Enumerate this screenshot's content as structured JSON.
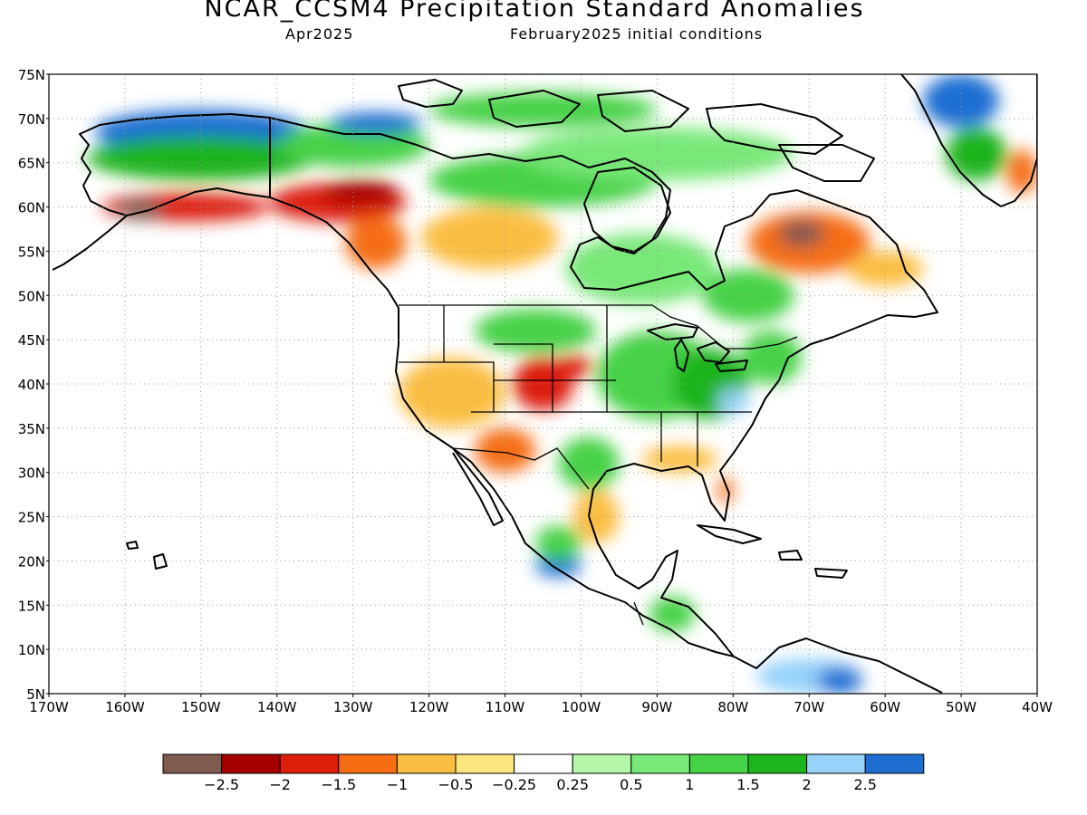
{
  "title": "NCAR_CCSM4 Precipitation Standard Anomalies",
  "subtitle_left": "Apr2025",
  "subtitle_right": "February2025 initial conditions",
  "map": {
    "lat_labels": [
      "75N",
      "70N",
      "65N",
      "60N",
      "55N",
      "50N",
      "45N",
      "40N",
      "35N",
      "30N",
      "25N",
      "20N",
      "15N",
      "10N",
      "5N"
    ],
    "lon_labels": [
      "170W",
      "160W",
      "150W",
      "140W",
      "130W",
      "120W",
      "110W",
      "100W",
      "90W",
      "80W",
      "70W",
      "60W",
      "50W",
      "40W"
    ],
    "lat_range": [
      5,
      75
    ],
    "lon_range": [
      -170,
      -40
    ],
    "gridlines": "dotted",
    "regions": [
      {
        "name": "alaska-north-slope",
        "lon": -150,
        "lat": 68.5,
        "rx": 14,
        "ry": 2.5,
        "anomaly": 2.5
      },
      {
        "name": "alaska-interior",
        "lon": -150,
        "lat": 65.5,
        "rx": 15,
        "ry": 2.5,
        "anomaly": 1.5
      },
      {
        "name": "yukon-north",
        "lon": -130,
        "lat": 67,
        "rx": 10,
        "ry": 2.5,
        "anomaly": 1.2
      },
      {
        "name": "beaufort-coast",
        "lon": -127,
        "lat": 69.5,
        "rx": 6,
        "ry": 1.2,
        "anomaly": 2.5
      },
      {
        "name": "alaska-south",
        "lon": -152,
        "lat": 60,
        "rx": 11,
        "ry": 1.6,
        "anomaly": -1.8
      },
      {
        "name": "alaska-southwest",
        "lon": -158,
        "lat": 59.7,
        "rx": 3,
        "ry": 1.2,
        "anomaly": -2.7
      },
      {
        "name": "gulf-alaska-coast",
        "lon": -132,
        "lat": 60.5,
        "rx": 9,
        "ry": 2.2,
        "anomaly": -1.6
      },
      {
        "name": "yukon-south",
        "lon": -129,
        "lat": 61.7,
        "rx": 5,
        "ry": 1.3,
        "anomaly": -2.2
      },
      {
        "name": "bc-interior",
        "lon": -127,
        "lat": 56,
        "rx": 4,
        "ry": 3,
        "anomaly": -1.2
      },
      {
        "name": "prairies-north",
        "lon": -112,
        "lat": 56.5,
        "rx": 9,
        "ry": 3.5,
        "anomaly": -0.8
      },
      {
        "name": "northwest-territories",
        "lon": -105,
        "lat": 63,
        "rx": 15,
        "ry": 3,
        "anomaly": 1.0
      },
      {
        "name": "nunavut",
        "lon": -90,
        "lat": 66,
        "rx": 18,
        "ry": 3,
        "anomaly": 0.7
      },
      {
        "name": "canadian-archipelago",
        "lon": -105,
        "lat": 71,
        "rx": 15,
        "ry": 2,
        "anomaly": 1.0
      },
      {
        "name": "manitoba-ontario",
        "lon": -92,
        "lat": 53,
        "rx": 10,
        "ry": 4,
        "anomaly": 0.9
      },
      {
        "name": "quebec-south",
        "lon": -78,
        "lat": 50,
        "rx": 6,
        "ry": 3,
        "anomaly": 1.0
      },
      {
        "name": "labrador",
        "lon": -70,
        "lat": 56,
        "rx": 8,
        "ry": 3.5,
        "anomaly": -1.5
      },
      {
        "name": "ungava",
        "lon": -71,
        "lat": 57,
        "rx": 3,
        "ry": 1.5,
        "anomaly": -2.7
      },
      {
        "name": "newfoundland",
        "lon": -60,
        "lat": 53,
        "rx": 5,
        "ry": 2,
        "anomaly": -0.6
      },
      {
        "name": "greenland-west",
        "lon": -50,
        "lat": 72,
        "rx": 5,
        "ry": 3,
        "anomaly": 2.6
      },
      {
        "name": "greenland-southwest",
        "lon": -48,
        "lat": 66,
        "rx": 4,
        "ry": 3,
        "anomaly": 1.6
      },
      {
        "name": "greenland-southeast",
        "lon": -42,
        "lat": 64,
        "rx": 2,
        "ry": 2.5,
        "anomaly": -1.4
      },
      {
        "name": "us-northern-plains",
        "lon": -106,
        "lat": 46,
        "rx": 8,
        "ry": 2.5,
        "anomaly": 1.0
      },
      {
        "name": "us-midwest",
        "lon": -90,
        "lat": 41,
        "rx": 8,
        "ry": 5,
        "anomaly": 1.3
      },
      {
        "name": "us-ohio-valley",
        "lon": -83,
        "lat": 40,
        "rx": 5,
        "ry": 4,
        "anomaly": 1.5
      },
      {
        "name": "us-northeast",
        "lon": -75,
        "lat": 43,
        "rx": 4,
        "ry": 3,
        "anomaly": 1.2
      },
      {
        "name": "appalachia",
        "lon": -80,
        "lat": 38,
        "rx": 2,
        "ry": 1.5,
        "anomaly": 2.2
      },
      {
        "name": "us-southwest",
        "lon": -117,
        "lat": 39,
        "rx": 7,
        "ry": 4,
        "anomaly": -0.8
      },
      {
        "name": "colorado",
        "lon": -105,
        "lat": 40,
        "rx": 4,
        "ry": 3,
        "anomaly": -1.6
      },
      {
        "name": "nebraska",
        "lon": -101,
        "lat": 42,
        "rx": 2.5,
        "ry": 1.2,
        "anomaly": -2.0
      },
      {
        "name": "arizona-sonora",
        "lon": -110,
        "lat": 32.5,
        "rx": 4,
        "ry": 2.5,
        "anomaly": -1.4
      },
      {
        "name": "us-gulf-coast",
        "lon": -87,
        "lat": 31.5,
        "rx": 5,
        "ry": 1.5,
        "anomaly": -0.8
      },
      {
        "name": "florida",
        "lon": -81,
        "lat": 28,
        "rx": 1,
        "ry": 1.5,
        "anomaly": -1.4
      },
      {
        "name": "texas",
        "lon": -99,
        "lat": 31,
        "rx": 4,
        "ry": 3,
        "anomaly": 1.2
      },
      {
        "name": "mexico-east",
        "lon": -98,
        "lat": 25,
        "rx": 3,
        "ry": 3,
        "anomaly": -0.8
      },
      {
        "name": "mexico-pacific",
        "lon": -103,
        "lat": 19.5,
        "rx": 3,
        "ry": 1.3,
        "anomaly": 2.5
      },
      {
        "name": "mexico-central",
        "lon": -103,
        "lat": 22,
        "rx": 3,
        "ry": 2,
        "anomaly": 1.2
      },
      {
        "name": "central-america",
        "lon": -88,
        "lat": 14,
        "rx": 3,
        "ry": 2,
        "anomaly": 1.0
      },
      {
        "name": "south-america-north",
        "lon": -70,
        "lat": 7,
        "rx": 7,
        "ry": 2,
        "anomaly": 2.0
      },
      {
        "name": "venezuela",
        "lon": -66,
        "lat": 6.5,
        "rx": 3,
        "ry": 1.5,
        "anomaly": 2.6
      }
    ]
  },
  "colorbar": {
    "colors": [
      "#7f5a4f",
      "#a50000",
      "#dc1e0a",
      "#f56e14",
      "#fbbe42",
      "#fde57f",
      "#ffffff",
      "#b4f7a8",
      "#78e878",
      "#46d246",
      "#1eb41e",
      "#96d2fa",
      "#1e6ed2"
    ],
    "labels": [
      "−2.5",
      "−2",
      "−1.5",
      "−1",
      "−0.5",
      "−0.25",
      "0.25",
      "0.5",
      "1",
      "1.5",
      "2",
      "2.5"
    ],
    "thresholds": [
      -2.5,
      -2,
      -1.5,
      -1,
      -0.5,
      -0.25,
      0.25,
      0.5,
      1,
      1.5,
      2,
      2.5
    ]
  }
}
